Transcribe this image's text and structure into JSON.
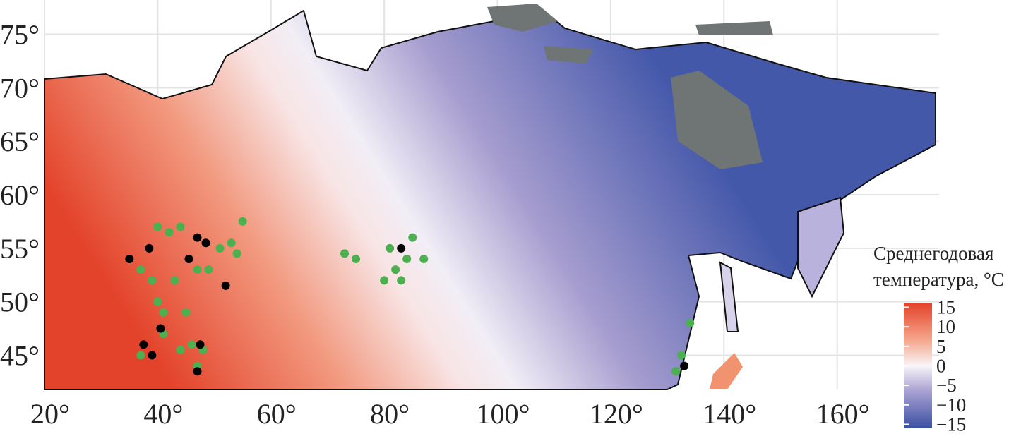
{
  "chart_data": {
    "type": "map",
    "xlim": [
      20,
      178
    ],
    "ylim": [
      41.8,
      78.2
    ],
    "xticks": [
      {
        "value": 20,
        "label": "20°"
      },
      {
        "value": 40,
        "label": "40°"
      },
      {
        "value": 60,
        "label": "60°"
      },
      {
        "value": 80,
        "label": "80°"
      },
      {
        "value": 100,
        "label": "100°"
      },
      {
        "value": 120,
        "label": "120°"
      },
      {
        "value": 140,
        "label": "140°"
      },
      {
        "value": 160,
        "label": "160°"
      }
    ],
    "yticks": [
      {
        "value": 45,
        "label": "45°"
      },
      {
        "value": 50,
        "label": "50°"
      },
      {
        "value": 55,
        "label": "55°"
      },
      {
        "value": 60,
        "label": "60°"
      },
      {
        "value": 65,
        "label": "65°"
      },
      {
        "value": 70,
        "label": "70°"
      },
      {
        "value": 75,
        "label": "75°"
      }
    ],
    "grid": true,
    "legend_title": [
      "Среднегодовая",
      "температура, °C"
    ],
    "clim": [
      -16,
      16
    ],
    "cticks": [
      15,
      10,
      5,
      0,
      {
        "value": -5,
        "label": "−5"
      },
      {
        "value": -10,
        "label": "−10"
      },
      {
        "value": -15,
        "label": "−15"
      }
    ],
    "series": [
      {
        "color": "#4caf50",
        "x": [
          40,
          42,
          44,
          37,
          39,
          40,
          41,
          45,
          47,
          49,
          51,
          53,
          54,
          55,
          43,
          41,
          37,
          44,
          48,
          47,
          46,
          73,
          75,
          81,
          82,
          83,
          85,
          84,
          87,
          80,
          134,
          132.5,
          131.5
        ],
        "y": [
          57,
          56.5,
          57,
          53,
          52,
          50,
          49,
          49,
          53,
          53,
          55,
          55.5,
          54.5,
          57.5,
          52,
          47,
          45,
          45.5,
          45.5,
          44,
          46,
          54.5,
          54,
          55,
          53,
          52,
          56,
          54,
          54,
          52,
          48,
          45,
          43.5
        ]
      },
      {
        "color": "#000000",
        "x": [
          38.5,
          47,
          48.5,
          45.5,
          52,
          40.5,
          37.5,
          39,
          47.5,
          47,
          35,
          83,
          133
        ],
        "y": [
          55,
          56,
          55.5,
          54,
          51.5,
          47.5,
          46,
          45,
          46,
          43.5,
          54,
          55,
          44
        ]
      }
    ]
  }
}
